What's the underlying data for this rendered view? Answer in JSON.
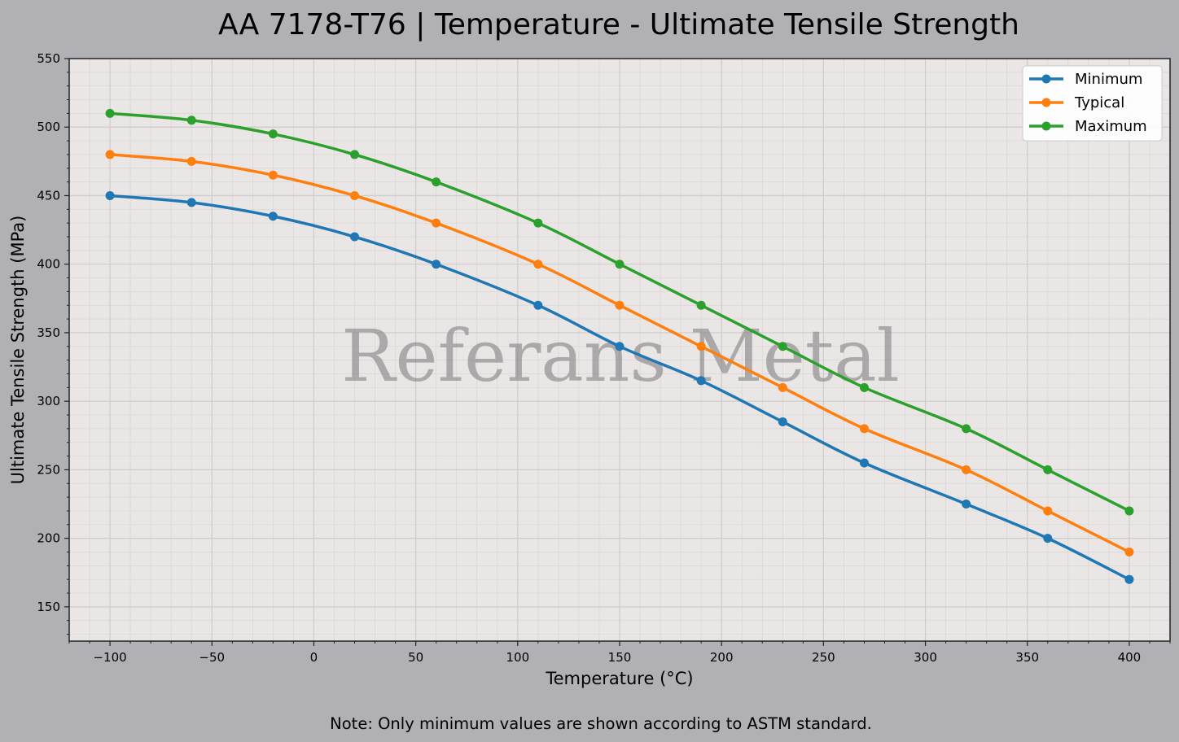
{
  "chart_data": {
    "type": "line",
    "title": "AA 7178-T76 | Temperature - Ultimate Tensile Strength",
    "xlabel": "Temperature (°C)",
    "ylabel": "Ultimate Tensile Strength (MPa)",
    "xlim": [
      -120,
      420
    ],
    "ylim": [
      125,
      550
    ],
    "x_ticks": [
      -100,
      -50,
      0,
      50,
      100,
      150,
      200,
      250,
      300,
      350,
      400
    ],
    "x_tick_labels": [
      "−100",
      "−50",
      "0",
      "50",
      "100",
      "150",
      "200",
      "250",
      "300",
      "350",
      "400"
    ],
    "y_ticks": [
      150,
      200,
      250,
      300,
      350,
      400,
      450,
      500,
      550
    ],
    "y_tick_labels": [
      "150",
      "200",
      "250",
      "300",
      "350",
      "400",
      "450",
      "500",
      "550"
    ],
    "grid": true,
    "legend_position": "top-right",
    "x": [
      -100,
      -60,
      -20,
      20,
      60,
      110,
      150,
      190,
      230,
      270,
      320,
      360,
      400
    ],
    "series": [
      {
        "name": "Minimum",
        "color": "#1f77b4",
        "values": [
          450,
          445,
          435,
          420,
          400,
          370,
          340,
          315,
          285,
          255,
          225,
          200,
          170
        ]
      },
      {
        "name": "Typical",
        "color": "#ff7f0e",
        "values": [
          480,
          475,
          465,
          450,
          430,
          400,
          370,
          340,
          310,
          280,
          250,
          220,
          190
        ]
      },
      {
        "name": "Maximum",
        "color": "#2ca02c",
        "values": [
          510,
          505,
          495,
          480,
          460,
          430,
          400,
          370,
          340,
          310,
          280,
          250,
          220
        ]
      }
    ]
  },
  "watermark": "Referans Metal",
  "note": "Note: Only minimum values are shown according to ASTM standard."
}
